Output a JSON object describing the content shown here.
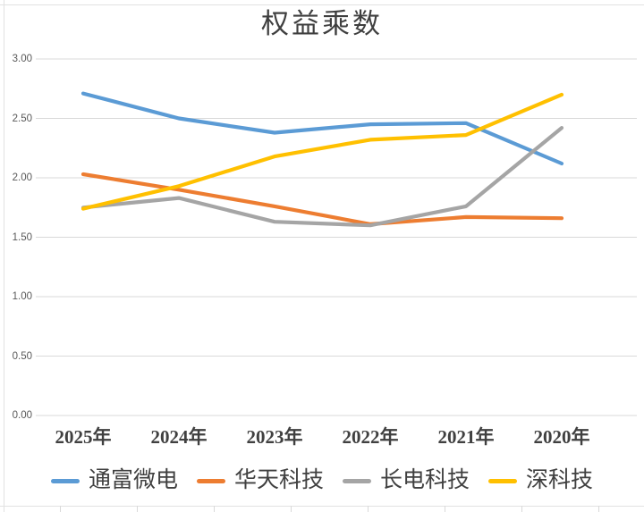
{
  "title": "权益乘数",
  "chart_data": {
    "type": "line",
    "title": "权益乘数",
    "categories": [
      "2025年",
      "2024年",
      "2023年",
      "2022年",
      "2021年",
      "2020年"
    ],
    "series": [
      {
        "name": "通富微电",
        "color": "#5B9BD5",
        "values": [
          2.71,
          2.5,
          2.38,
          2.45,
          2.46,
          2.12
        ]
      },
      {
        "name": "华天科技",
        "color": "#ED7D31",
        "values": [
          2.03,
          1.9,
          1.76,
          1.61,
          1.67,
          1.66
        ]
      },
      {
        "name": "长电科技",
        "color": "#A5A5A5",
        "values": [
          1.75,
          1.83,
          1.63,
          1.6,
          1.76,
          2.42
        ]
      },
      {
        "name": "深科技",
        "color": "#FFC000",
        "values": [
          1.74,
          1.93,
          2.18,
          2.32,
          2.36,
          2.7
        ]
      }
    ],
    "y_ticks": [
      "3.00",
      "2.50",
      "2.00",
      "1.50",
      "1.00",
      "0.50",
      "0.00"
    ],
    "ylim": [
      0.0,
      3.0
    ],
    "y_step": 0.5,
    "xlabel": "",
    "ylabel": "",
    "grid": true,
    "legend_position": "bottom"
  },
  "colors": {
    "gridline": "#D9D9D9",
    "axis_tick_text": "#595959",
    "category_text": "#404040",
    "title_text": "#3F3F3F",
    "sheet_artifact": "#E2E2E2"
  }
}
